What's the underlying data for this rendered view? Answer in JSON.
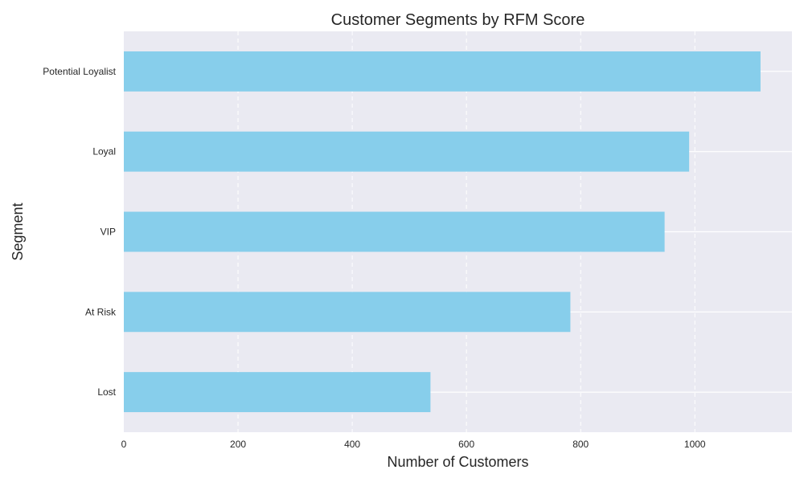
{
  "chart_data": {
    "type": "bar",
    "orientation": "horizontal",
    "title": "Customer Segments by RFM Score",
    "xlabel": "Number of Customers",
    "ylabel": "Segment",
    "categories": [
      "Lost",
      "At Risk",
      "VIP",
      "Loyal",
      "Potential Loyalist"
    ],
    "values": [
      537,
      782,
      947,
      990,
      1115
    ],
    "xlim": [
      0,
      1170
    ],
    "xticks": [
      "0",
      "200",
      "400",
      "600",
      "800",
      "1000"
    ],
    "grid": true,
    "bar_color": "#87ceeb",
    "background_color": "#eaeaf2"
  }
}
